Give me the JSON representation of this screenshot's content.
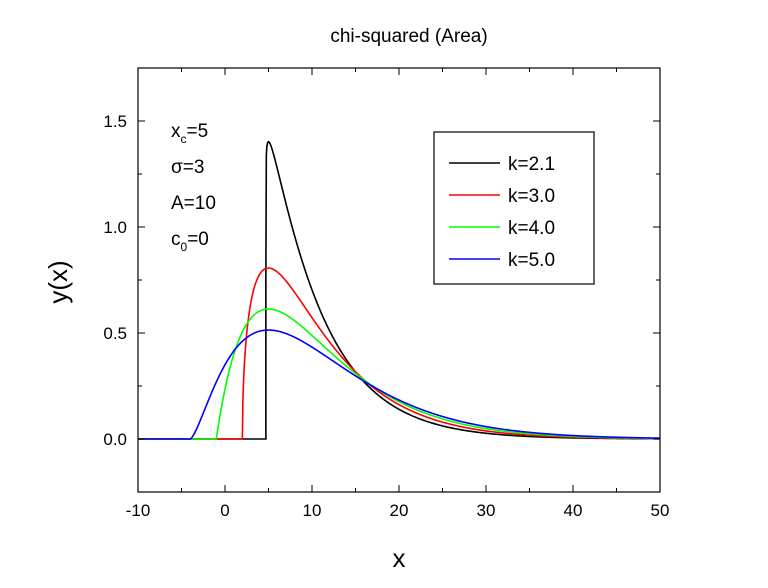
{
  "chart_data": {
    "type": "line",
    "title": "chi-squared (Area)",
    "xlabel": "x",
    "ylabel": "y(x)",
    "xlim": [
      -10,
      50
    ],
    "ylim": [
      -0.25,
      1.75
    ],
    "x_ticks": [
      -10,
      0,
      10,
      20,
      30,
      40,
      50
    ],
    "x_tick_labels": [
      "-10",
      "0",
      "10",
      "20",
      "30",
      "40",
      "50"
    ],
    "y_ticks": [
      0.0,
      0.5,
      1.0,
      1.5
    ],
    "y_tick_labels": [
      "0.0",
      "0.5",
      "1.0",
      "1.5"
    ],
    "grid": false,
    "legend_position": "top-right",
    "annotations": [
      {
        "main": "x",
        "sub": "c",
        "rest": "=5"
      },
      {
        "main": "σ=3",
        "sub": "",
        "rest": ""
      },
      {
        "main": "A=10",
        "sub": "",
        "rest": ""
      },
      {
        "main": "c",
        "sub": "0",
        "rest": "=0"
      }
    ],
    "params": {
      "xc": 5,
      "sigma": 3,
      "A": 10,
      "c0": 0
    },
    "series": [
      {
        "name": "k=2.1",
        "k": 2.1,
        "color": "#000000"
      },
      {
        "name": "k=3.0",
        "k": 3.0,
        "color": "#ff0000"
      },
      {
        "name": "k=4.0",
        "k": 4.0,
        "color": "#00ff00"
      },
      {
        "name": "k=5.0",
        "k": 5.0,
        "color": "#0000ff"
      }
    ]
  }
}
